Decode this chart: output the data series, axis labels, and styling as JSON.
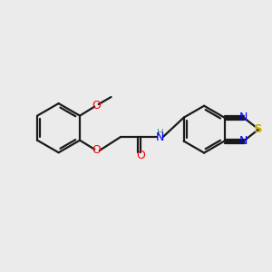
{
  "background_color": "#ebebeb",
  "bond_color": "#1a1a1a",
  "figsize": [
    3.0,
    3.0
  ],
  "dpi": 100,
  "lw": 1.6,
  "xlim": [
    0,
    10
  ],
  "ylim": [
    0,
    10
  ]
}
